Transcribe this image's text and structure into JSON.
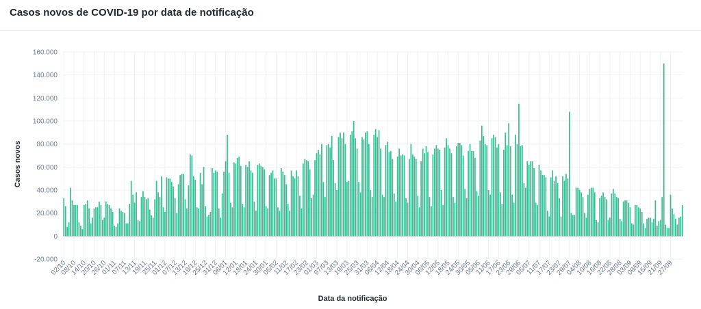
{
  "title": "Casos novos de COVID-19 por data de notificação",
  "colors": {
    "bar": "#3dbd96",
    "bar_stroke": "#2a9e7b",
    "grid": "#eef0f3",
    "zero_line": "#c9ced6"
  },
  "chart_data": {
    "type": "bar",
    "xlabel": "Data da notificação",
    "ylabel": "Casos novos",
    "ylim": [
      -20000,
      160000
    ],
    "yticks": [
      -20000,
      0,
      20000,
      40000,
      60000,
      80000,
      100000,
      120000,
      140000,
      160000
    ],
    "ytick_labels": [
      "-20.000",
      "0",
      "20.000",
      "40.000",
      "60.000",
      "80.000",
      "100.000",
      "120.000",
      "140.000",
      "160.000"
    ],
    "grid": true,
    "start_date": "2020-10-02",
    "x_tick_labels": [
      "02/10",
      "08/10",
      "14/10",
      "20/10",
      "26/10",
      "01/11",
      "07/11",
      "13/11",
      "19/11",
      "25/11",
      "01/12",
      "07/12",
      "13/12",
      "19/12",
      "25/12",
      "31/12",
      "06/01",
      "12/01",
      "18/01",
      "24/01",
      "30/01",
      "05/02",
      "11/02",
      "17/02",
      "23/02",
      "01/03",
      "07/03",
      "13/03",
      "19/03",
      "25/03",
      "31/03",
      "06/04",
      "12/04",
      "18/04",
      "24/04",
      "30/04",
      "06/05",
      "12/05",
      "18/05",
      "24/05",
      "30/05",
      "05/06",
      "11/06",
      "17/06",
      "23/06",
      "29/06",
      "05/07",
      "11/07",
      "17/07",
      "23/07",
      "29/07",
      "04/08",
      "10/08",
      "16/08",
      "22/08",
      "28/08",
      "03/09",
      "09/09",
      "15/09",
      "21/09",
      "27/09"
    ],
    "values": [
      33000,
      26000,
      8000,
      12000,
      42000,
      31000,
      27000,
      27000,
      27000,
      12000,
      9000,
      6000,
      27000,
      28000,
      31000,
      24000,
      11000,
      16000,
      24000,
      25000,
      25000,
      30000,
      27000,
      14000,
      16000,
      30000,
      28000,
      27000,
      24000,
      21000,
      9000,
      8000,
      11000,
      24000,
      22000,
      21000,
      20000,
      11000,
      11000,
      28000,
      48000,
      36000,
      29000,
      38000,
      14000,
      13000,
      34000,
      39000,
      34000,
      32000,
      33000,
      23000,
      18000,
      16000,
      32000,
      48000,
      38000,
      34000,
      52000,
      25000,
      21000,
      51000,
      50000,
      50000,
      47000,
      43000,
      33000,
      20000,
      45000,
      53000,
      54000,
      54000,
      32000,
      24000,
      44000,
      71000,
      70000,
      52000,
      49000,
      25000,
      24000,
      55000,
      45000,
      60000,
      26000,
      17000,
      18000,
      21000,
      59000,
      55000,
      57000,
      56000,
      24000,
      16000,
      37000,
      56000,
      65000,
      88000,
      55000,
      29000,
      25000,
      64000,
      63000,
      68000,
      69000,
      61000,
      28000,
      25000,
      62000,
      60000,
      65000,
      57000,
      55000,
      30000,
      22000,
      62000,
      63000,
      61000,
      60000,
      58000,
      26000,
      24000,
      53000,
      55000,
      57000,
      50000,
      50000,
      25000,
      22000,
      59000,
      56000,
      53000,
      45000,
      28000,
      22000,
      57000,
      52000,
      50000,
      57000,
      52000,
      35000,
      24000,
      63000,
      67000,
      66000,
      65000,
      58000,
      33000,
      36000,
      66000,
      72000,
      75000,
      71000,
      80000,
      47000,
      34000,
      79000,
      80000,
      77000,
      87000,
      66000,
      46000,
      40000,
      86000,
      90000,
      85000,
      90000,
      80000,
      47000,
      48000,
      88000,
      91000,
      100000,
      85000,
      76000,
      47000,
      38000,
      86000,
      84000,
      90000,
      91000,
      80000,
      40000,
      34000,
      88000,
      93000,
      86000,
      92000,
      76000,
      36000,
      34000,
      79000,
      82000,
      73000,
      74000,
      67000,
      37000,
      30000,
      69000,
      76000,
      70000,
      71000,
      70000,
      33000,
      29000,
      67000,
      80000,
      71000,
      69000,
      67000,
      35000,
      25000,
      65000,
      76000,
      72000,
      78000,
      73000,
      34000,
      26000,
      71000,
      76000,
      79000,
      76000,
      75000,
      40000,
      27000,
      77000,
      85000,
      79000,
      76000,
      72000,
      34000,
      29000,
      78000,
      81000,
      81000,
      79000,
      70000,
      41000,
      33000,
      74000,
      80000,
      74000,
      74000,
      68000,
      39000,
      35000,
      83000,
      96000,
      87000,
      80000,
      79000,
      40000,
      36000,
      85000,
      88000,
      86000,
      77000,
      80000,
      38000,
      28000,
      75000,
      90000,
      79000,
      98000,
      78000,
      36000,
      29000,
      88000,
      80000,
      115000,
      78000,
      79000,
      46000,
      42000,
      65000,
      62000,
      65000,
      65000,
      59000,
      29000,
      27000,
      62000,
      57000,
      53000,
      53000,
      51000,
      22000,
      17000,
      51000,
      57000,
      48000,
      52000,
      46000,
      33000,
      17000,
      52000,
      48000,
      54000,
      50000,
      108000,
      20000,
      18000,
      18000,
      42000,
      42000,
      40000,
      38000,
      34000,
      20000,
      16000,
      36000,
      41000,
      42000,
      42000,
      38000,
      14000,
      12000,
      33000,
      35000,
      38000,
      34000,
      32000,
      14000,
      16000,
      37000,
      41000,
      37000,
      34000,
      33000,
      15000,
      13000,
      30000,
      31000,
      31000,
      29000,
      25000,
      11000,
      10000,
      27000,
      27000,
      25000,
      24000,
      21000,
      11000,
      7000,
      15000,
      16000,
      16000,
      12000,
      15000,
      31000,
      9000,
      13000,
      14000,
      34000,
      150000,
      10000,
      7000,
      7000,
      36000,
      24000,
      19000,
      15000,
      10000,
      16000,
      17000,
      27000
    ]
  }
}
